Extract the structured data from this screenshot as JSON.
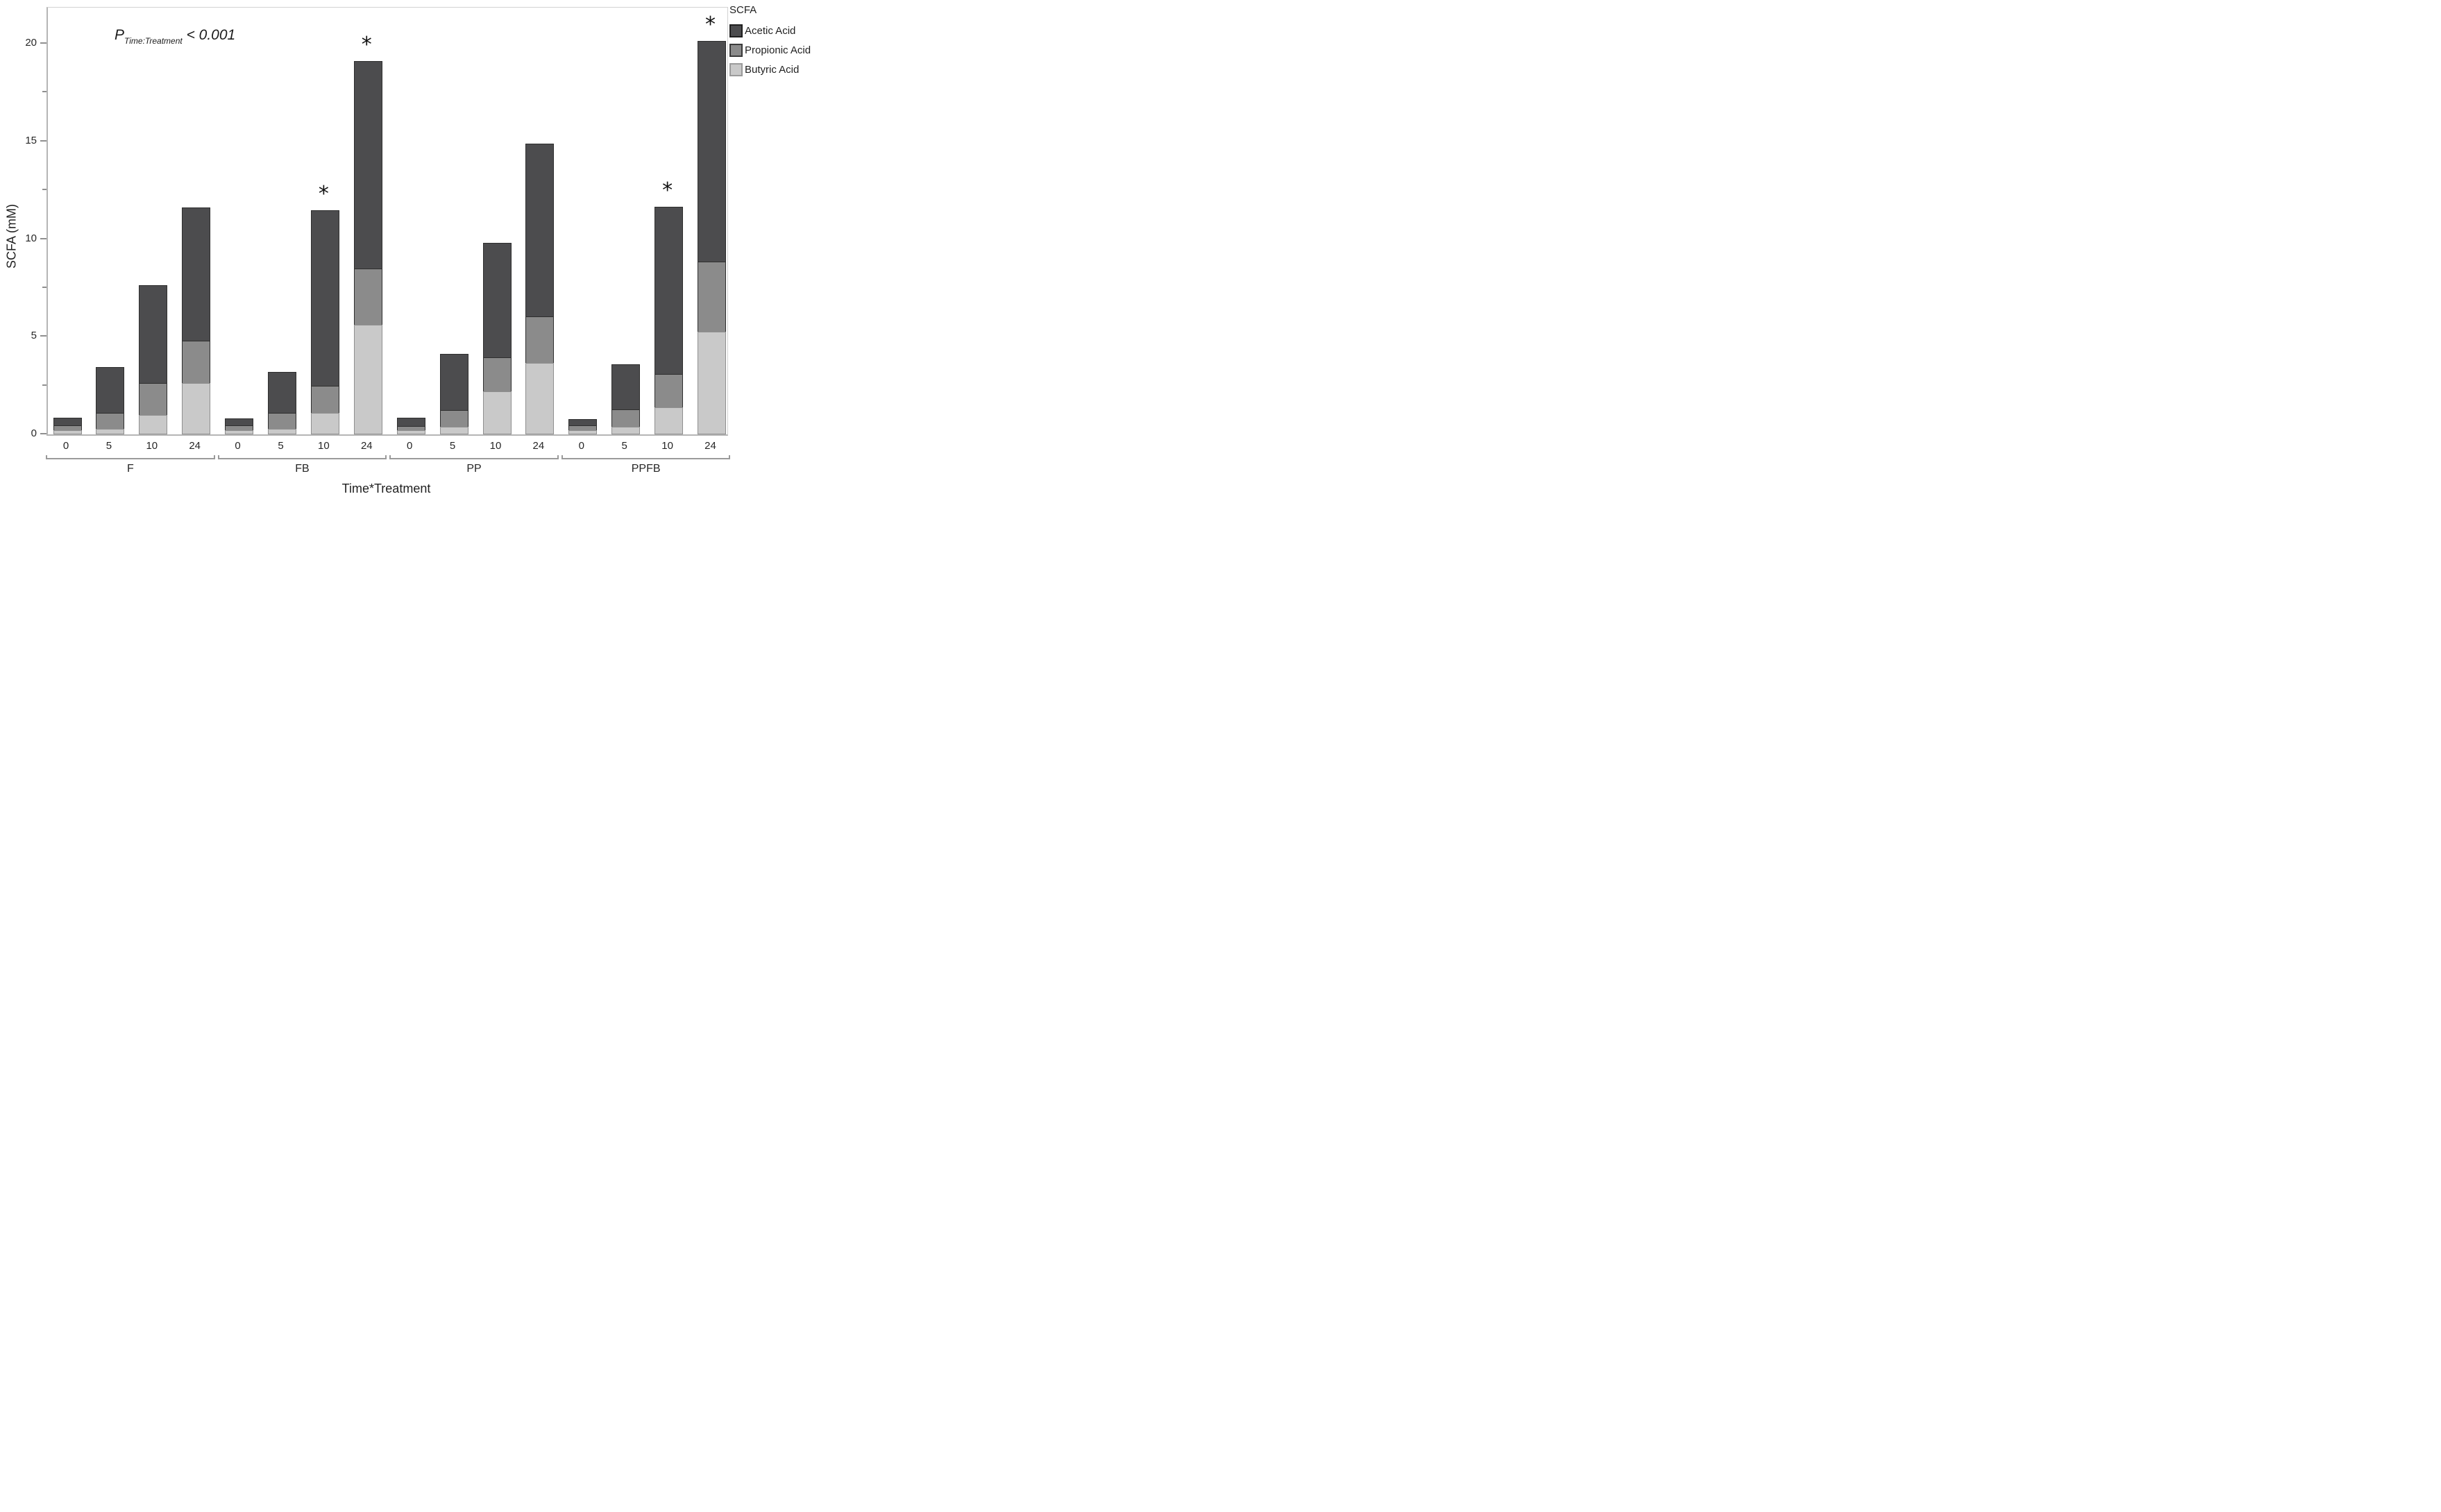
{
  "figure": {
    "p_annotation": {
      "symbol": "P",
      "subscript": "Time:Treatment",
      "comparison": "< 0.001"
    },
    "y_axis_title": "SCFA (mM)",
    "x_axis_title": "Time*Treatment",
    "legend": {
      "title": "SCFA",
      "entries": [
        {
          "label": "Acetic Acid",
          "color": "#4c4c4e",
          "border": "#1f1f1f"
        },
        {
          "label": "Propionic Acid",
          "color": "#8b8b8b",
          "border": "#3a3a3a"
        },
        {
          "label": "Butyric Acid",
          "color": "#c9c9c9",
          "border": "#9a9a9a"
        }
      ]
    },
    "significance_marker": "*"
  },
  "chart_data": {
    "type": "bar",
    "stacked": true,
    "title": "",
    "xlabel": "Time*Treatment",
    "ylabel": "SCFA (mM)",
    "ylim": [
      0,
      21.85
    ],
    "y_major_ticks": [
      0,
      5,
      10,
      15,
      20
    ],
    "y_minor_ticks": [
      2.5,
      7.5,
      12.5,
      17.5
    ],
    "grid": false,
    "legend_position": "top-right-outside",
    "groups": [
      "F",
      "FB",
      "PP",
      "PPFB"
    ],
    "times": [
      "0",
      "5",
      "10",
      "24"
    ],
    "series": [
      {
        "name": "Butyric Acid",
        "color": "#c9c9c9",
        "stack_order": 1,
        "values": {
          "F": [
            0.22,
            0.3,
            1.0,
            2.63
          ],
          "FB": [
            0.2,
            0.3,
            1.1,
            5.62
          ],
          "PP": [
            0.22,
            0.38,
            2.22,
            3.65
          ],
          "PPFB": [
            0.2,
            0.38,
            1.4,
            5.25
          ]
        }
      },
      {
        "name": "Propionic Acid",
        "color": "#8b8b8b",
        "stack_order": 2,
        "values": {
          "F": [
            0.24,
            0.8,
            1.62,
            2.17
          ],
          "FB": [
            0.25,
            0.8,
            1.4,
            2.88
          ],
          "PP": [
            0.2,
            0.87,
            1.73,
            2.4
          ],
          "PPFB": [
            0.26,
            0.9,
            1.7,
            3.6
          ]
        }
      },
      {
        "name": "Acetic Acid",
        "color": "#4c4c4e",
        "stack_order": 3,
        "values": {
          "F": [
            0.38,
            2.33,
            5.03,
            6.82
          ],
          "FB": [
            0.37,
            2.1,
            8.98,
            10.62
          ],
          "PP": [
            0.43,
            2.87,
            5.87,
            8.85
          ],
          "PPFB": [
            0.32,
            2.32,
            8.55,
            11.3
          ]
        }
      }
    ],
    "totals": {
      "F": [
        0.84,
        3.43,
        7.65,
        11.62
      ],
      "FB": [
        0.82,
        3.2,
        11.48,
        19.12
      ],
      "PP": [
        0.85,
        4.12,
        9.82,
        14.9
      ],
      "PPFB": [
        0.78,
        3.6,
        11.65,
        20.15
      ]
    },
    "significant_bars": [
      {
        "group": "FB",
        "time": "10"
      },
      {
        "group": "FB",
        "time": "24"
      },
      {
        "group": "PPFB",
        "time": "10"
      },
      {
        "group": "PPFB",
        "time": "24"
      }
    ]
  }
}
